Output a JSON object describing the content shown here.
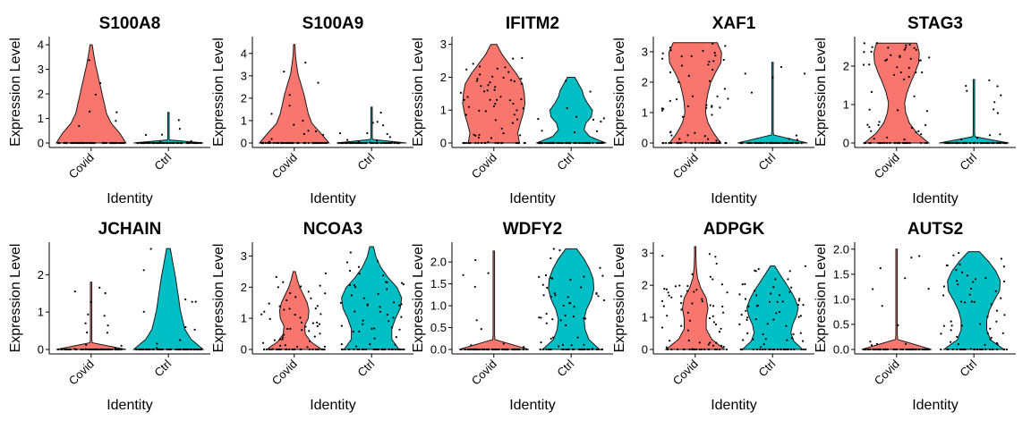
{
  "chart_data": {
    "type": "violin",
    "layout": "2 rows x 5 panels",
    "identity_colors": {
      "Covid": "#F8766D",
      "Ctrl": "#00BFC4"
    },
    "panels": [
      {
        "title": "S100A8",
        "xlabel": "Identity",
        "ylabel": "Expression Level",
        "categories": [
          "Covid",
          "Ctrl"
        ],
        "ylim": [
          0,
          4.15
        ],
        "yticks": [
          0,
          1,
          2,
          3,
          4
        ],
        "ytick_labels": [
          "0",
          "1",
          "2",
          "3",
          "4"
        ],
        "violins": [
          {
            "category": "Covid",
            "max": 4.0,
            "shape": [
              0.95,
              0.78,
              0.55,
              0.42,
              0.36,
              0.3,
              0.24,
              0.18,
              0.12,
              0.07,
              0.03
            ]
          },
          {
            "category": "Ctrl",
            "max": 1.25,
            "shape": [
              0.95,
              0.03,
              0.01,
              0.01,
              0.01,
              0.01,
              0.01,
              0.01,
              0.01,
              0.01,
              0.01
            ]
          }
        ]
      },
      {
        "title": "S100A9",
        "xlabel": "Identity",
        "ylabel": "Expression Level",
        "categories": [
          "Covid",
          "Ctrl"
        ],
        "ylim": [
          0,
          4.55
        ],
        "yticks": [
          0,
          1,
          2,
          3,
          4
        ],
        "ytick_labels": [
          "0",
          "1",
          "2",
          "3",
          "4"
        ],
        "violins": [
          {
            "category": "Covid",
            "max": 4.4,
            "shape": [
              0.95,
              0.72,
              0.48,
              0.38,
              0.32,
              0.26,
              0.18,
              0.1,
              0.06,
              0.03,
              0.02
            ]
          },
          {
            "category": "Ctrl",
            "max": 1.6,
            "shape": [
              0.95,
              0.03,
              0.01,
              0.01,
              0.01,
              0.01,
              0.01,
              0.01,
              0.01,
              0.01,
              0.01
            ]
          }
        ]
      },
      {
        "title": "IFITM2",
        "xlabel": "Identity",
        "ylabel": "Expression Level",
        "categories": [
          "Covid",
          "Ctrl"
        ],
        "ylim": [
          0,
          3.1
        ],
        "yticks": [
          0,
          1,
          2,
          3
        ],
        "ytick_labels": [
          "0",
          "1",
          "2",
          "3"
        ],
        "violins": [
          {
            "category": "Covid",
            "max": 3.0,
            "shape": [
              0.7,
              0.65,
              0.72,
              0.8,
              0.85,
              0.83,
              0.78,
              0.62,
              0.42,
              0.22,
              0.08
            ]
          },
          {
            "category": "Ctrl",
            "max": 2.0,
            "shape": [
              0.95,
              0.5,
              0.35,
              0.4,
              0.55,
              0.58,
              0.45,
              0.35,
              0.3,
              0.2,
              0.1
            ]
          }
        ]
      },
      {
        "title": "XAF1",
        "xlabel": "Identity",
        "ylabel": "Expression Level",
        "categories": [
          "Covid",
          "Ctrl"
        ],
        "ylim": [
          0,
          3.35
        ],
        "yticks": [
          0,
          1,
          2,
          3
        ],
        "ytick_labels": [
          "0",
          "1",
          "2",
          "3"
        ],
        "violins": [
          {
            "category": "Covid",
            "max": 3.3,
            "shape": [
              0.7,
              0.5,
              0.35,
              0.28,
              0.3,
              0.35,
              0.42,
              0.55,
              0.7,
              0.72,
              0.6
            ]
          },
          {
            "category": "Ctrl",
            "max": 2.65,
            "shape": [
              0.95,
              0.03,
              0.01,
              0.01,
              0.01,
              0.01,
              0.01,
              0.01,
              0.01,
              0.01,
              0.01
            ]
          }
        ]
      },
      {
        "title": "STAG3",
        "xlabel": "Identity",
        "ylabel": "Expression Level",
        "categories": [
          "Covid",
          "Ctrl"
        ],
        "ylim": [
          0,
          2.65
        ],
        "yticks": [
          0,
          1,
          2
        ],
        "ytick_labels": [
          "0",
          "1",
          "2"
        ],
        "violins": [
          {
            "category": "Covid",
            "max": 2.6,
            "shape": [
              0.88,
              0.55,
              0.35,
              0.25,
              0.22,
              0.28,
              0.38,
              0.5,
              0.6,
              0.62,
              0.55
            ]
          },
          {
            "category": "Ctrl",
            "max": 1.65,
            "shape": [
              0.95,
              0.03,
              0.01,
              0.01,
              0.01,
              0.01,
              0.01,
              0.01,
              0.01,
              0.01,
              0.01
            ]
          }
        ]
      },
      {
        "title": "JCHAIN",
        "xlabel": "Identity",
        "ylabel": "Expression Level",
        "categories": [
          "Covid",
          "Ctrl"
        ],
        "ylim": [
          0,
          2.75
        ],
        "yticks": [
          0,
          1,
          2
        ],
        "ytick_labels": [
          "0",
          "1",
          "2"
        ],
        "violins": [
          {
            "category": "Covid",
            "max": 1.8,
            "shape": [
              0.95,
              0.03,
              0.01,
              0.01,
              0.01,
              0.01,
              0.01,
              0.01,
              0.01,
              0.01,
              0.01
            ]
          },
          {
            "category": "Ctrl",
            "max": 2.7,
            "shape": [
              0.95,
              0.62,
              0.45,
              0.38,
              0.32,
              0.28,
              0.24,
              0.2,
              0.15,
              0.1,
              0.05
            ]
          }
        ]
      },
      {
        "title": "NCOA3",
        "xlabel": "Identity",
        "ylabel": "Expression Level",
        "categories": [
          "Covid",
          "Ctrl"
        ],
        "ylim": [
          0,
          3.3
        ],
        "yticks": [
          0,
          1,
          2,
          3
        ],
        "ytick_labels": [
          "0",
          "1",
          "2",
          "3"
        ],
        "violins": [
          {
            "category": "Covid",
            "max": 2.5,
            "shape": [
              0.75,
              0.45,
              0.3,
              0.28,
              0.38,
              0.4,
              0.35,
              0.25,
              0.15,
              0.08,
              0.03
            ]
          },
          {
            "category": "Ctrl",
            "max": 3.3,
            "shape": [
              0.75,
              0.55,
              0.55,
              0.65,
              0.78,
              0.82,
              0.7,
              0.45,
              0.25,
              0.12,
              0.05
            ]
          }
        ]
      },
      {
        "title": "WDFY2",
        "xlabel": "Identity",
        "ylabel": "Expression Level",
        "categories": [
          "Covid",
          "Ctrl"
        ],
        "ylim": [
          0,
          2.35
        ],
        "yticks": [
          0,
          0.5,
          1,
          1.5,
          2
        ],
        "ytick_labels": [
          "0.0",
          "0.5",
          "1.0",
          "1.5",
          "2.0"
        ],
        "violins": [
          {
            "category": "Covid",
            "max": 2.25,
            "shape": [
              0.95,
              0.03,
              0.01,
              0.01,
              0.01,
              0.01,
              0.01,
              0.01,
              0.01,
              0.01,
              0.01
            ]
          },
          {
            "category": "Ctrl",
            "max": 2.3,
            "shape": [
              0.78,
              0.48,
              0.38,
              0.35,
              0.42,
              0.55,
              0.62,
              0.6,
              0.5,
              0.35,
              0.15
            ]
          }
        ]
      },
      {
        "title": "ADPGK",
        "xlabel": "Identity",
        "ylabel": "Expression Level",
        "categories": [
          "Covid",
          "Ctrl"
        ],
        "ylim": [
          0,
          3.2
        ],
        "yticks": [
          0,
          1,
          2,
          3
        ],
        "ytick_labels": [
          "0",
          "1",
          "2",
          "3"
        ],
        "violins": [
          {
            "category": "Covid",
            "max": 3.2,
            "shape": [
              0.8,
              0.45,
              0.3,
              0.3,
              0.35,
              0.3,
              0.15,
              0.06,
              0.03,
              0.02,
              0.01
            ]
          },
          {
            "category": "Ctrl",
            "max": 2.6,
            "shape": [
              0.82,
              0.58,
              0.5,
              0.55,
              0.65,
              0.7,
              0.62,
              0.5,
              0.35,
              0.2,
              0.06
            ]
          }
        ]
      },
      {
        "title": "AUTS2",
        "xlabel": "Identity",
        "ylabel": "Expression Level",
        "categories": [
          "Covid",
          "Ctrl"
        ],
        "ylim": [
          0,
          2.05
        ],
        "yticks": [
          0,
          0.5,
          1,
          1.5,
          2
        ],
        "ytick_labels": [
          "0.0",
          "0.5",
          "1.0",
          "1.5",
          "2.0"
        ],
        "violins": [
          {
            "category": "Covid",
            "max": 2.0,
            "shape": [
              0.95,
              0.03,
              0.01,
              0.01,
              0.01,
              0.01,
              0.01,
              0.01,
              0.01,
              0.01,
              0.01
            ]
          },
          {
            "category": "Ctrl",
            "max": 1.95,
            "shape": [
              0.82,
              0.45,
              0.35,
              0.35,
              0.42,
              0.55,
              0.7,
              0.72,
              0.6,
              0.4,
              0.15
            ]
          }
        ]
      }
    ]
  }
}
